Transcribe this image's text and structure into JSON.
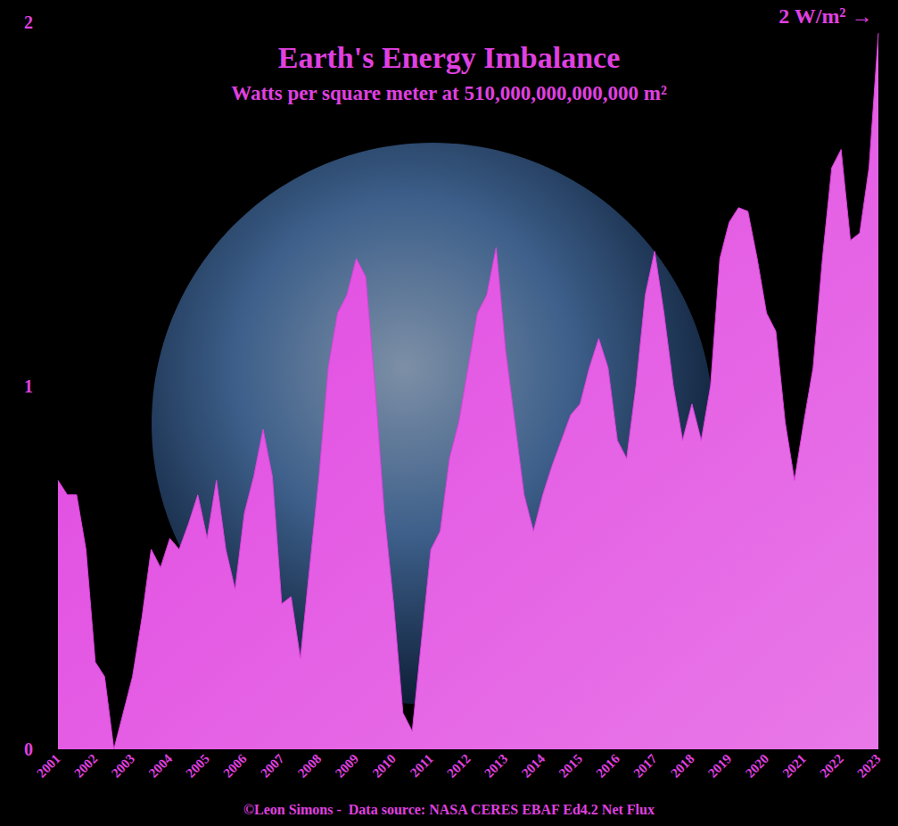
{
  "chart_data": {
    "type": "area",
    "title": "Earth's Energy Imbalance",
    "subtitle": "Watts per square meter at 510,000,000,000,000 m²",
    "annotation": "2 W/m² →",
    "source": "©Leon Simons -  Data source: NASA CERES EBAF Ed4.2 Net Flux",
    "categories": [
      "2001",
      null,
      null,
      null,
      "2002",
      null,
      null,
      null,
      "2003",
      null,
      null,
      null,
      "2004",
      null,
      null,
      null,
      "2005",
      null,
      null,
      null,
      "2006",
      null,
      null,
      null,
      "2007",
      null,
      null,
      null,
      "2008",
      null,
      null,
      null,
      "2009",
      null,
      null,
      null,
      "2010",
      null,
      null,
      null,
      "2011",
      null,
      null,
      null,
      "2012",
      null,
      null,
      null,
      "2013",
      null,
      null,
      null,
      "2014",
      null,
      null,
      null,
      "2015",
      null,
      null,
      null,
      "2016",
      null,
      null,
      null,
      "2017",
      null,
      null,
      null,
      "2018",
      null,
      null,
      null,
      "2019",
      null,
      null,
      null,
      "2020",
      null,
      null,
      null,
      "2021",
      null,
      null,
      null,
      "2022",
      null,
      null,
      null,
      "2023"
    ],
    "values": [
      0.74,
      0.7,
      0.7,
      0.55,
      0.24,
      0.2,
      0.0,
      0.1,
      0.2,
      0.36,
      0.55,
      0.5,
      0.58,
      0.55,
      0.62,
      0.7,
      0.58,
      0.74,
      0.55,
      0.44,
      0.65,
      0.75,
      0.88,
      0.75,
      0.4,
      0.42,
      0.25,
      0.5,
      0.75,
      1.05,
      1.2,
      1.25,
      1.35,
      1.3,
      1.0,
      0.65,
      0.4,
      0.1,
      0.05,
      0.3,
      0.55,
      0.6,
      0.8,
      0.9,
      1.05,
      1.2,
      1.25,
      1.38,
      1.1,
      0.9,
      0.7,
      0.6,
      0.7,
      0.78,
      0.85,
      0.92,
      0.95,
      1.05,
      1.13,
      1.05,
      0.85,
      0.8,
      1.0,
      1.25,
      1.37,
      1.2,
      1.0,
      0.85,
      0.95,
      0.85,
      1.0,
      1.35,
      1.45,
      1.49,
      1.48,
      1.35,
      1.2,
      1.15,
      0.9,
      0.74,
      0.9,
      1.05,
      1.35,
      1.6,
      1.65,
      1.4,
      1.42,
      1.6,
      1.97
    ],
    "color": "#e040e0",
    "ylim": [
      0,
      2
    ],
    "yticks": [
      0,
      1,
      2
    ],
    "grid": false
  }
}
